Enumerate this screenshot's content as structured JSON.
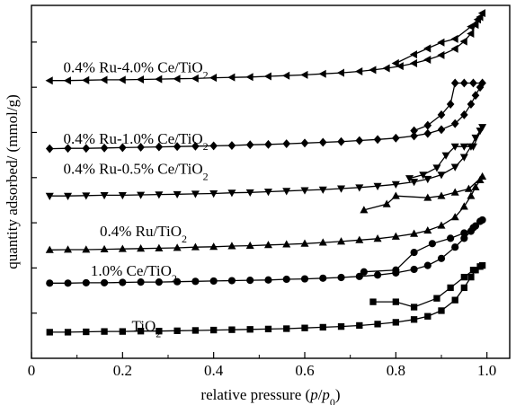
{
  "chart_data": {
    "type": "scatter",
    "xlabel": "relative pressure (p/p0)",
    "ylabel": "quantity adsorbed/ (mmol/g)",
    "xlim": [
      0,
      1.05
    ],
    "ylim": [
      0,
      1
    ],
    "xticks": [
      "0",
      "0.2",
      "0.4",
      "0.6",
      "0.8",
      "1.0"
    ],
    "xtick_values": [
      0,
      0.2,
      0.4,
      0.6,
      0.8,
      1.0
    ],
    "grid": false,
    "legend": "inline labels above each curve",
    "y_note": "y axis has no tick labels; y values are relative offsets (0 = bottom of axis, 1 = top)",
    "series": [
      {
        "name": "0.4% Ru-4.0% Ce/TiO2",
        "label_parts": [
          "0.4% Ru-4.0% Ce/TiO",
          "2"
        ],
        "label_at": [
          0.07,
          0.81
        ],
        "marker": "triangle-left",
        "adsorption": [
          [
            0.04,
            0.787
          ],
          [
            0.08,
            0.787
          ],
          [
            0.12,
            0.788
          ],
          [
            0.16,
            0.789
          ],
          [
            0.2,
            0.789
          ],
          [
            0.24,
            0.79
          ],
          [
            0.28,
            0.791
          ],
          [
            0.32,
            0.792
          ],
          [
            0.36,
            0.793
          ],
          [
            0.4,
            0.795
          ],
          [
            0.44,
            0.796
          ],
          [
            0.48,
            0.797
          ],
          [
            0.52,
            0.799
          ],
          [
            0.56,
            0.801
          ],
          [
            0.6,
            0.803
          ],
          [
            0.64,
            0.806
          ],
          [
            0.68,
            0.809
          ],
          [
            0.72,
            0.813
          ],
          [
            0.75,
            0.817
          ],
          [
            0.78,
            0.822
          ],
          [
            0.81,
            0.828
          ],
          [
            0.84,
            0.836
          ],
          [
            0.87,
            0.846
          ],
          [
            0.9,
            0.859
          ],
          [
            0.93,
            0.877
          ],
          [
            0.95,
            0.898
          ],
          [
            0.965,
            0.92
          ],
          [
            0.975,
            0.945
          ],
          [
            0.985,
            0.967
          ],
          [
            0.99,
            0.978
          ]
        ],
        "desorption": [
          [
            0.99,
            0.978
          ],
          [
            0.98,
            0.96
          ],
          [
            0.965,
            0.94
          ],
          [
            0.93,
            0.905
          ],
          [
            0.9,
            0.895
          ],
          [
            0.87,
            0.878
          ],
          [
            0.84,
            0.861
          ],
          [
            0.8,
            0.836
          ]
        ]
      },
      {
        "name": "0.4% Ru-1.0% Ce/TiO2",
        "label_parts": [
          "0.4% Ru-1.0% Ce/TiO",
          "2"
        ],
        "label_at": [
          0.07,
          0.608
        ],
        "marker": "diamond",
        "adsorption": [
          [
            0.04,
            0.594
          ],
          [
            0.08,
            0.595
          ],
          [
            0.12,
            0.595
          ],
          [
            0.16,
            0.596
          ],
          [
            0.2,
            0.597
          ],
          [
            0.24,
            0.598
          ],
          [
            0.28,
            0.599
          ],
          [
            0.32,
            0.6
          ],
          [
            0.36,
            0.601
          ],
          [
            0.4,
            0.602
          ],
          [
            0.44,
            0.603
          ],
          [
            0.48,
            0.605
          ],
          [
            0.52,
            0.606
          ],
          [
            0.56,
            0.608
          ],
          [
            0.6,
            0.61
          ],
          [
            0.64,
            0.612
          ],
          [
            0.68,
            0.614
          ],
          [
            0.72,
            0.617
          ],
          [
            0.76,
            0.62
          ],
          [
            0.8,
            0.624
          ],
          [
            0.84,
            0.63
          ],
          [
            0.87,
            0.637
          ],
          [
            0.9,
            0.648
          ],
          [
            0.93,
            0.665
          ],
          [
            0.95,
            0.69
          ],
          [
            0.965,
            0.72
          ],
          [
            0.975,
            0.745
          ],
          [
            0.985,
            0.768
          ],
          [
            0.99,
            0.78
          ]
        ],
        "desorption": [
          [
            0.99,
            0.78
          ],
          [
            0.97,
            0.78
          ],
          [
            0.95,
            0.78
          ],
          [
            0.93,
            0.78
          ],
          [
            0.92,
            0.72
          ],
          [
            0.9,
            0.69
          ],
          [
            0.87,
            0.66
          ],
          [
            0.84,
            0.645
          ]
        ]
      },
      {
        "name": "0.4% Ru-0.5% Ce/TiO2",
        "label_parts": [
          "0.4% Ru-0.5% Ce/TiO",
          "2"
        ],
        "label_at": [
          0.07,
          0.523
        ],
        "marker": "triangle-down",
        "adsorption": [
          [
            0.04,
            0.46
          ],
          [
            0.08,
            0.46
          ],
          [
            0.12,
            0.461
          ],
          [
            0.16,
            0.462
          ],
          [
            0.2,
            0.462
          ],
          [
            0.24,
            0.463
          ],
          [
            0.28,
            0.464
          ],
          [
            0.32,
            0.465
          ],
          [
            0.36,
            0.466
          ],
          [
            0.4,
            0.467
          ],
          [
            0.44,
            0.469
          ],
          [
            0.48,
            0.47
          ],
          [
            0.52,
            0.472
          ],
          [
            0.56,
            0.474
          ],
          [
            0.6,
            0.476
          ],
          [
            0.64,
            0.478
          ],
          [
            0.68,
            0.481
          ],
          [
            0.72,
            0.484
          ],
          [
            0.76,
            0.488
          ],
          [
            0.8,
            0.493
          ],
          [
            0.84,
            0.5
          ],
          [
            0.87,
            0.508
          ],
          [
            0.9,
            0.52
          ],
          [
            0.93,
            0.542
          ],
          [
            0.95,
            0.57
          ],
          [
            0.965,
            0.6
          ],
          [
            0.975,
            0.625
          ],
          [
            0.985,
            0.645
          ],
          [
            0.99,
            0.655
          ]
        ],
        "desorption": [
          [
            0.99,
            0.655
          ],
          [
            0.97,
            0.6
          ],
          [
            0.95,
            0.6
          ],
          [
            0.93,
            0.6
          ],
          [
            0.91,
            0.575
          ],
          [
            0.89,
            0.54
          ],
          [
            0.86,
            0.52
          ],
          [
            0.83,
            0.51
          ]
        ]
      },
      {
        "name": "0.4% Ru/TiO2",
        "label_parts": [
          "0.4% Ru/TiO",
          "2"
        ],
        "label_at": [
          0.15,
          0.346
        ],
        "marker": "triangle-up",
        "adsorption": [
          [
            0.04,
            0.307
          ],
          [
            0.08,
            0.308
          ],
          [
            0.12,
            0.308
          ],
          [
            0.16,
            0.309
          ],
          [
            0.2,
            0.31
          ],
          [
            0.24,
            0.311
          ],
          [
            0.28,
            0.312
          ],
          [
            0.32,
            0.313
          ],
          [
            0.36,
            0.315
          ],
          [
            0.4,
            0.316
          ],
          [
            0.44,
            0.318
          ],
          [
            0.48,
            0.319
          ],
          [
            0.52,
            0.321
          ],
          [
            0.56,
            0.323
          ],
          [
            0.6,
            0.325
          ],
          [
            0.64,
            0.328
          ],
          [
            0.68,
            0.331
          ],
          [
            0.72,
            0.335
          ],
          [
            0.76,
            0.339
          ],
          [
            0.8,
            0.345
          ],
          [
            0.84,
            0.353
          ],
          [
            0.87,
            0.362
          ],
          [
            0.9,
            0.376
          ],
          [
            0.93,
            0.4
          ],
          [
            0.95,
            0.43
          ],
          [
            0.965,
            0.46
          ],
          [
            0.975,
            0.485
          ],
          [
            0.985,
            0.505
          ],
          [
            0.99,
            0.515
          ]
        ],
        "desorption": [
          [
            0.99,
            0.515
          ],
          [
            0.96,
            0.48
          ],
          [
            0.93,
            0.47
          ],
          [
            0.9,
            0.46
          ],
          [
            0.87,
            0.455
          ],
          [
            0.8,
            0.46
          ],
          [
            0.78,
            0.437
          ],
          [
            0.73,
            0.42
          ]
        ]
      },
      {
        "name": "1.0% Ce/TiO2",
        "label_parts": [
          "1.0% Ce/TiO",
          "2"
        ],
        "label_at": [
          0.13,
          0.234
        ],
        "marker": "circle",
        "adsorption": [
          [
            0.04,
            0.213
          ],
          [
            0.08,
            0.213
          ],
          [
            0.12,
            0.214
          ],
          [
            0.16,
            0.214
          ],
          [
            0.2,
            0.215
          ],
          [
            0.24,
            0.216
          ],
          [
            0.28,
            0.216
          ],
          [
            0.32,
            0.217
          ],
          [
            0.36,
            0.218
          ],
          [
            0.4,
            0.219
          ],
          [
            0.44,
            0.22
          ],
          [
            0.48,
            0.221
          ],
          [
            0.52,
            0.222
          ],
          [
            0.56,
            0.224
          ],
          [
            0.6,
            0.225
          ],
          [
            0.64,
            0.227
          ],
          [
            0.68,
            0.229
          ],
          [
            0.72,
            0.232
          ],
          [
            0.76,
            0.236
          ],
          [
            0.8,
            0.242
          ],
          [
            0.84,
            0.252
          ],
          [
            0.87,
            0.263
          ],
          [
            0.9,
            0.283
          ],
          [
            0.93,
            0.315
          ],
          [
            0.95,
            0.34
          ],
          [
            0.965,
            0.36
          ],
          [
            0.975,
            0.375
          ],
          [
            0.985,
            0.388
          ],
          [
            0.99,
            0.392
          ]
        ],
        "desorption": [
          [
            0.99,
            0.392
          ],
          [
            0.97,
            0.37
          ],
          [
            0.95,
            0.355
          ],
          [
            0.92,
            0.34
          ],
          [
            0.88,
            0.325
          ],
          [
            0.84,
            0.3
          ],
          [
            0.8,
            0.25
          ],
          [
            0.73,
            0.245
          ]
        ]
      },
      {
        "name": "TiO2",
        "label_parts": [
          "TiO",
          "2"
        ],
        "label_at": [
          0.22,
          0.078
        ],
        "marker": "square",
        "adsorption": [
          [
            0.04,
            0.074
          ],
          [
            0.08,
            0.074
          ],
          [
            0.12,
            0.075
          ],
          [
            0.16,
            0.076
          ],
          [
            0.2,
            0.076
          ],
          [
            0.24,
            0.077
          ],
          [
            0.28,
            0.077
          ],
          [
            0.32,
            0.078
          ],
          [
            0.36,
            0.079
          ],
          [
            0.4,
            0.08
          ],
          [
            0.44,
            0.081
          ],
          [
            0.48,
            0.082
          ],
          [
            0.52,
            0.083
          ],
          [
            0.56,
            0.084
          ],
          [
            0.6,
            0.086
          ],
          [
            0.64,
            0.088
          ],
          [
            0.68,
            0.09
          ],
          [
            0.72,
            0.093
          ],
          [
            0.76,
            0.097
          ],
          [
            0.8,
            0.102
          ],
          [
            0.84,
            0.11
          ],
          [
            0.87,
            0.119
          ],
          [
            0.9,
            0.135
          ],
          [
            0.93,
            0.165
          ],
          [
            0.95,
            0.2
          ],
          [
            0.965,
            0.23
          ],
          [
            0.975,
            0.25
          ],
          [
            0.985,
            0.26
          ],
          [
            0.99,
            0.263
          ]
        ],
        "desorption": [
          [
            0.99,
            0.263
          ],
          [
            0.97,
            0.25
          ],
          [
            0.95,
            0.23
          ],
          [
            0.92,
            0.2
          ],
          [
            0.89,
            0.17
          ],
          [
            0.84,
            0.145
          ],
          [
            0.8,
            0.16
          ],
          [
            0.75,
            0.16
          ]
        ]
      }
    ]
  }
}
